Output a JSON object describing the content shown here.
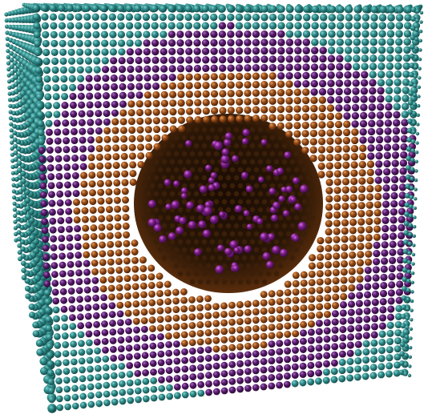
{
  "scene": {
    "subject": "atomic-sphere-lattice",
    "layers": [
      {
        "name": "outer-shell",
        "color": "#2f8c8a",
        "shade": "#124a49",
        "hilite": "#7fd0cd"
      },
      {
        "name": "second-shell",
        "color": "#5a1a6e",
        "shade": "#2a0a34",
        "hilite": "#a36cbf"
      },
      {
        "name": "third-shell",
        "color": "#9a4c15",
        "shade": "#4a220a",
        "hilite": "#e09a5a"
      },
      {
        "name": "core-particles",
        "color": "#7a1d86",
        "shade": "#3a0a40",
        "hilite": "#d26ce6"
      }
    ],
    "background": "#ffffff",
    "cavity": "#2a1606"
  }
}
